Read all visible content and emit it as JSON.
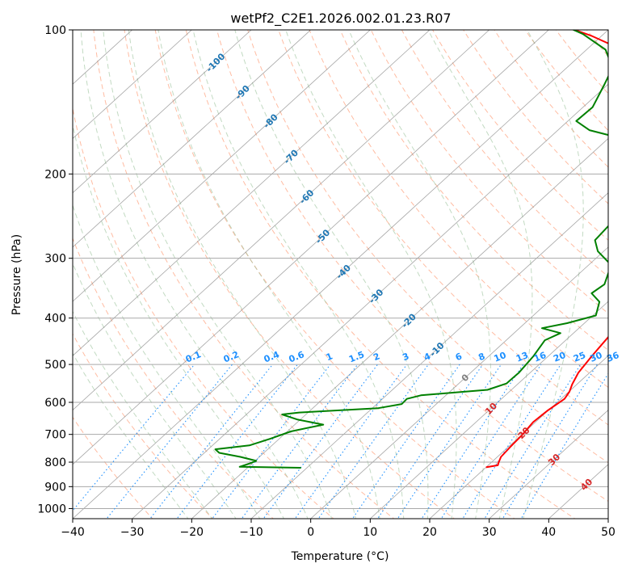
{
  "chart_data": {
    "type": "line",
    "title": "wetPf2_C2E1.2026.002.01.23.R07",
    "xlabel": "Temperature (°C)",
    "ylabel": "Pressure (hPa)",
    "xlim": [
      -40,
      50
    ],
    "ylim": [
      1050,
      100
    ],
    "y_scale": "log",
    "x_ticks": [
      -40,
      -30,
      -20,
      -10,
      0,
      10,
      20,
      30,
      40,
      50
    ],
    "y_ticks": [
      1000,
      900,
      800,
      700,
      600,
      500,
      400,
      300,
      200,
      100
    ],
    "grid": true,
    "series": [
      {
        "role": "temperature",
        "color": "#ff0000",
        "points": [
          {
            "t": 20.0,
            "p": 820
          },
          {
            "t": 21.6,
            "p": 812
          },
          {
            "t": 21.2,
            "p": 800
          },
          {
            "t": 20.6,
            "p": 780
          },
          {
            "t": 20.3,
            "p": 740
          },
          {
            "t": 20.1,
            "p": 700
          },
          {
            "t": 19.6,
            "p": 660
          },
          {
            "t": 19.9,
            "p": 625
          },
          {
            "t": 20.6,
            "p": 590
          },
          {
            "t": 20.1,
            "p": 570
          },
          {
            "t": 19.2,
            "p": 550
          },
          {
            "t": 18.1,
            "p": 520
          },
          {
            "t": 17.3,
            "p": 480
          },
          {
            "t": 16.6,
            "p": 440
          },
          {
            "t": 15.6,
            "p": 400
          },
          {
            "t": 13.1,
            "p": 350
          },
          {
            "t": 9.1,
            "p": 300
          },
          {
            "t": 4.7,
            "p": 250
          },
          {
            "t": 1.5,
            "p": 210
          },
          {
            "t": -1.3,
            "p": 185
          },
          {
            "t": -0.4,
            "p": 170
          },
          {
            "t": -4.8,
            "p": 160
          },
          {
            "t": -8.2,
            "p": 150
          },
          {
            "t": -13.6,
            "p": 140
          },
          {
            "t": -19.7,
            "p": 130
          },
          {
            "t": -25.6,
            "p": 120
          },
          {
            "t": -34.0,
            "p": 110
          },
          {
            "t": -41.6,
            "p": 103
          },
          {
            "t": -47.0,
            "p": 99
          }
        ]
      },
      {
        "role": "dewpoint",
        "color": "#008000",
        "points": [
          {
            "t": -11.0,
            "p": 822
          },
          {
            "t": -21.5,
            "p": 818
          },
          {
            "t": -20.5,
            "p": 806
          },
          {
            "t": -19.8,
            "p": 795
          },
          {
            "t": -23.2,
            "p": 780
          },
          {
            "t": -27.5,
            "p": 765
          },
          {
            "t": -28.8,
            "p": 752
          },
          {
            "t": -23.8,
            "p": 738
          },
          {
            "t": -21.5,
            "p": 715
          },
          {
            "t": -19.4,
            "p": 690
          },
          {
            "t": -15.2,
            "p": 668
          },
          {
            "t": -20.4,
            "p": 652
          },
          {
            "t": -24.0,
            "p": 636
          },
          {
            "t": -21.5,
            "p": 630
          },
          {
            "t": -9.0,
            "p": 617
          },
          {
            "t": -5.8,
            "p": 605
          },
          {
            "t": -5.9,
            "p": 590
          },
          {
            "t": -4.2,
            "p": 580
          },
          {
            "t": 6.0,
            "p": 565
          },
          {
            "t": 8.0,
            "p": 548
          },
          {
            "t": 8.1,
            "p": 520
          },
          {
            "t": 7.5,
            "p": 480
          },
          {
            "t": 6.5,
            "p": 445
          },
          {
            "t": 7.8,
            "p": 430
          },
          {
            "t": 3.8,
            "p": 420
          },
          {
            "t": 7.1,
            "p": 410
          },
          {
            "t": 10.5,
            "p": 395
          },
          {
            "t": 8.6,
            "p": 370
          },
          {
            "t": 5.7,
            "p": 355
          },
          {
            "t": 6.2,
            "p": 340
          },
          {
            "t": 3.8,
            "p": 310
          },
          {
            "t": -1.0,
            "p": 290
          },
          {
            "t": -3.5,
            "p": 275
          },
          {
            "t": -4.0,
            "p": 250
          },
          {
            "t": -3.2,
            "p": 230
          },
          {
            "t": -4.0,
            "p": 210
          },
          {
            "t": -3.5,
            "p": 195
          },
          {
            "t": -3.0,
            "p": 186
          },
          {
            "t": -7.8,
            "p": 180
          },
          {
            "t": -16.3,
            "p": 170
          },
          {
            "t": -24.7,
            "p": 162
          },
          {
            "t": -28.6,
            "p": 155
          },
          {
            "t": -28.4,
            "p": 145
          },
          {
            "t": -30.6,
            "p": 130
          },
          {
            "t": -32.3,
            "p": 120
          },
          {
            "t": -36.8,
            "p": 110
          },
          {
            "t": -43.5,
            "p": 102
          },
          {
            "t": -47.0,
            "p": 99
          }
        ]
      }
    ],
    "dry_adiabat_labels": [
      {
        "text": "-100",
        "temp": -100
      },
      {
        "text": "-90",
        "temp": -90
      },
      {
        "text": "-80",
        "temp": -80
      },
      {
        "text": "-70",
        "temp": -70
      },
      {
        "text": "-60",
        "temp": -60
      },
      {
        "text": "-50",
        "temp": -50
      },
      {
        "text": "-40",
        "temp": -40
      },
      {
        "text": "-30",
        "temp": -30
      },
      {
        "text": "-20",
        "temp": -20
      },
      {
        "text": "-10",
        "temp": -10
      },
      {
        "text": "0",
        "temp": 0
      },
      {
        "text": "10",
        "temp": 10
      },
      {
        "text": "20",
        "temp": 20
      },
      {
        "text": "30",
        "temp": 30
      },
      {
        "text": "40",
        "temp": 40
      }
    ],
    "mixing_ratio_labels": [
      "0.1",
      "0.2",
      "0.4",
      "0.6",
      "1",
      "1.5",
      "2",
      "3",
      "4",
      "6",
      "8",
      "10",
      "13",
      "16",
      "20",
      "25",
      "30",
      "36"
    ],
    "colors": {
      "temperature": "#ff0000",
      "dewpoint": "#008000",
      "dry_adiabat": "#ffa07a",
      "moist_adiabat": "#8fbc8f",
      "mixing_ratio": "#1e90ff",
      "isotherm": "#808080",
      "cold_label": "#1f77b4",
      "warm_label": "#d62728",
      "zero_label": "#808080"
    }
  }
}
